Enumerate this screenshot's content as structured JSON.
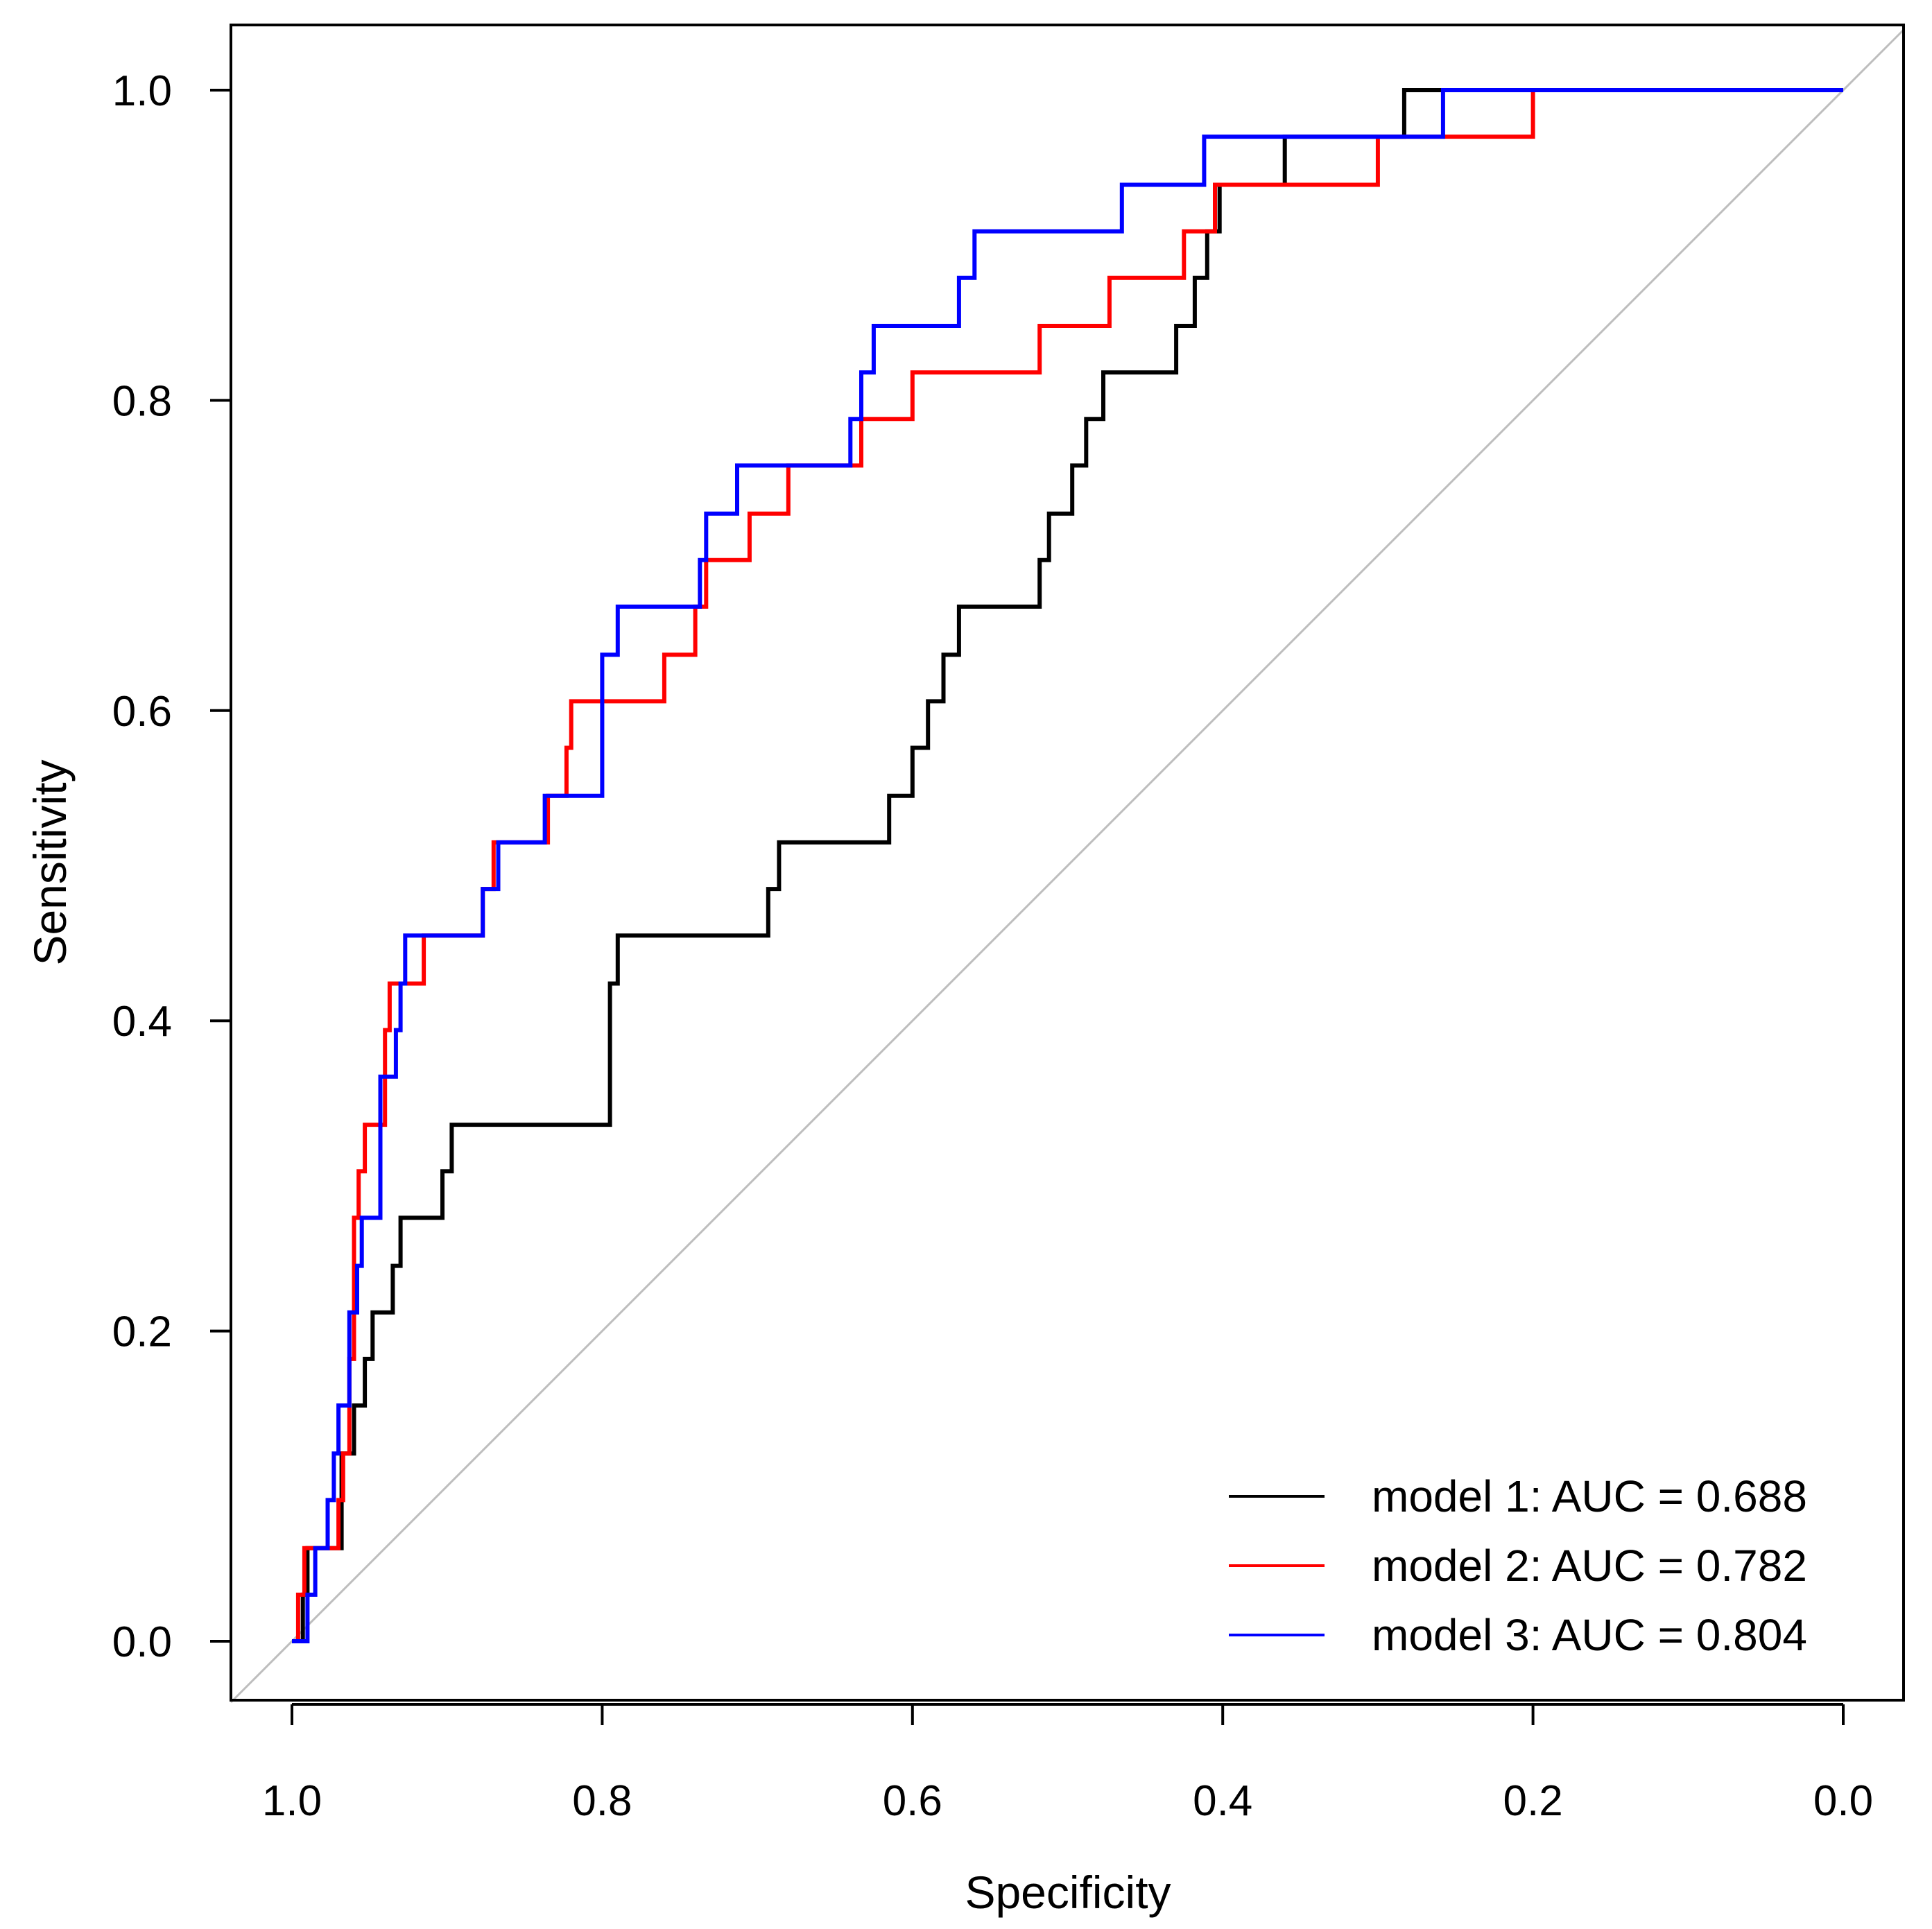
{
  "chart_data": {
    "type": "line",
    "title": "",
    "xlabel": "Specificity",
    "ylabel": "Sensitivity",
    "xlim": [
      1.0,
      0.0
    ],
    "ylim": [
      0.0,
      1.0
    ],
    "x_reversed": true,
    "xticks": [
      "1.0",
      "0.8",
      "0.6",
      "0.4",
      "0.2",
      "0.0"
    ],
    "yticks": [
      "0.0",
      "0.2",
      "0.4",
      "0.6",
      "0.8",
      "1.0"
    ],
    "grid": false,
    "legend_position": "bottom-right",
    "reference_line": {
      "from": [
        1.0,
        0.0
      ],
      "to": [
        0.0,
        1.0
      ],
      "color": "#bebebe"
    },
    "series": [
      {
        "name": "model 1",
        "legend": "model 1: AUC = 0.688",
        "auc": 0.688,
        "color": "#000000",
        "points": [
          [
            1.0,
            0.0
          ],
          [
            0.993,
            0.0
          ],
          [
            0.993,
            0.03
          ],
          [
            0.99,
            0.03
          ],
          [
            0.99,
            0.06
          ],
          [
            0.968,
            0.06
          ],
          [
            0.968,
            0.121
          ],
          [
            0.96,
            0.121
          ],
          [
            0.96,
            0.152
          ],
          [
            0.953,
            0.152
          ],
          [
            0.953,
            0.182
          ],
          [
            0.948,
            0.182
          ],
          [
            0.948,
            0.212
          ],
          [
            0.935,
            0.212
          ],
          [
            0.935,
            0.242
          ],
          [
            0.93,
            0.242
          ],
          [
            0.93,
            0.273
          ],
          [
            0.903,
            0.273
          ],
          [
            0.903,
            0.303
          ],
          [
            0.897,
            0.303
          ],
          [
            0.897,
            0.333
          ],
          [
            0.795,
            0.333
          ],
          [
            0.795,
            0.424
          ],
          [
            0.79,
            0.424
          ],
          [
            0.79,
            0.455
          ],
          [
            0.693,
            0.455
          ],
          [
            0.693,
            0.485
          ],
          [
            0.686,
            0.485
          ],
          [
            0.686,
            0.515
          ],
          [
            0.615,
            0.515
          ],
          [
            0.615,
            0.545
          ],
          [
            0.6,
            0.545
          ],
          [
            0.6,
            0.576
          ],
          [
            0.59,
            0.576
          ],
          [
            0.59,
            0.606
          ],
          [
            0.58,
            0.606
          ],
          [
            0.58,
            0.636
          ],
          [
            0.57,
            0.636
          ],
          [
            0.57,
            0.667
          ],
          [
            0.518,
            0.667
          ],
          [
            0.518,
            0.697
          ],
          [
            0.512,
            0.697
          ],
          [
            0.512,
            0.727
          ],
          [
            0.497,
            0.727
          ],
          [
            0.497,
            0.758
          ],
          [
            0.488,
            0.758
          ],
          [
            0.488,
            0.788
          ],
          [
            0.477,
            0.788
          ],
          [
            0.477,
            0.818
          ],
          [
            0.43,
            0.818
          ],
          [
            0.43,
            0.848
          ],
          [
            0.418,
            0.848
          ],
          [
            0.418,
            0.879
          ],
          [
            0.41,
            0.879
          ],
          [
            0.41,
            0.909
          ],
          [
            0.402,
            0.909
          ],
          [
            0.402,
            0.939
          ],
          [
            0.36,
            0.939
          ],
          [
            0.36,
            0.97
          ],
          [
            0.283,
            0.97
          ],
          [
            0.283,
            1.0
          ],
          [
            0.0,
            1.0
          ]
        ]
      },
      {
        "name": "model 2",
        "legend": "model 2: AUC = 0.782",
        "auc": 0.782,
        "color": "#ff0000",
        "points": [
          [
            1.0,
            0.0
          ],
          [
            0.996,
            0.0
          ],
          [
            0.996,
            0.03
          ],
          [
            0.992,
            0.03
          ],
          [
            0.992,
            0.06
          ],
          [
            0.97,
            0.06
          ],
          [
            0.97,
            0.091
          ],
          [
            0.967,
            0.091
          ],
          [
            0.967,
            0.121
          ],
          [
            0.963,
            0.121
          ],
          [
            0.963,
            0.182
          ],
          [
            0.96,
            0.182
          ],
          [
            0.96,
            0.273
          ],
          [
            0.957,
            0.273
          ],
          [
            0.957,
            0.303
          ],
          [
            0.953,
            0.303
          ],
          [
            0.953,
            0.333
          ],
          [
            0.94,
            0.333
          ],
          [
            0.94,
            0.394
          ],
          [
            0.937,
            0.394
          ],
          [
            0.937,
            0.424
          ],
          [
            0.915,
            0.424
          ],
          [
            0.915,
            0.455
          ],
          [
            0.877,
            0.455
          ],
          [
            0.877,
            0.485
          ],
          [
            0.87,
            0.485
          ],
          [
            0.87,
            0.515
          ],
          [
            0.835,
            0.515
          ],
          [
            0.835,
            0.545
          ],
          [
            0.823,
            0.545
          ],
          [
            0.823,
            0.576
          ],
          [
            0.82,
            0.576
          ],
          [
            0.82,
            0.606
          ],
          [
            0.76,
            0.606
          ],
          [
            0.76,
            0.636
          ],
          [
            0.74,
            0.636
          ],
          [
            0.74,
            0.667
          ],
          [
            0.733,
            0.667
          ],
          [
            0.733,
            0.697
          ],
          [
            0.705,
            0.697
          ],
          [
            0.705,
            0.727
          ],
          [
            0.68,
            0.727
          ],
          [
            0.68,
            0.758
          ],
          [
            0.633,
            0.758
          ],
          [
            0.633,
            0.788
          ],
          [
            0.6,
            0.788
          ],
          [
            0.6,
            0.818
          ],
          [
            0.518,
            0.818
          ],
          [
            0.518,
            0.848
          ],
          [
            0.473,
            0.848
          ],
          [
            0.473,
            0.879
          ],
          [
            0.425,
            0.879
          ],
          [
            0.425,
            0.909
          ],
          [
            0.405,
            0.909
          ],
          [
            0.405,
            0.939
          ],
          [
            0.3,
            0.939
          ],
          [
            0.3,
            0.97
          ],
          [
            0.2,
            0.97
          ],
          [
            0.2,
            1.0
          ],
          [
            0.0,
            1.0
          ]
        ]
      },
      {
        "name": "model 3",
        "legend": "model 3: AUC = 0.804",
        "auc": 0.804,
        "color": "#0000ff",
        "points": [
          [
            1.0,
            0.0
          ],
          [
            0.99,
            0.0
          ],
          [
            0.99,
            0.03
          ],
          [
            0.985,
            0.03
          ],
          [
            0.985,
            0.06
          ],
          [
            0.977,
            0.06
          ],
          [
            0.977,
            0.091
          ],
          [
            0.973,
            0.091
          ],
          [
            0.973,
            0.121
          ],
          [
            0.97,
            0.121
          ],
          [
            0.97,
            0.152
          ],
          [
            0.963,
            0.152
          ],
          [
            0.963,
            0.212
          ],
          [
            0.958,
            0.212
          ],
          [
            0.958,
            0.242
          ],
          [
            0.955,
            0.242
          ],
          [
            0.955,
            0.273
          ],
          [
            0.943,
            0.273
          ],
          [
            0.943,
            0.364
          ],
          [
            0.933,
            0.364
          ],
          [
            0.933,
            0.394
          ],
          [
            0.93,
            0.394
          ],
          [
            0.93,
            0.424
          ],
          [
            0.927,
            0.424
          ],
          [
            0.927,
            0.455
          ],
          [
            0.877,
            0.455
          ],
          [
            0.877,
            0.485
          ],
          [
            0.867,
            0.485
          ],
          [
            0.867,
            0.515
          ],
          [
            0.837,
            0.515
          ],
          [
            0.837,
            0.545
          ],
          [
            0.8,
            0.545
          ],
          [
            0.8,
            0.636
          ],
          [
            0.79,
            0.636
          ],
          [
            0.79,
            0.667
          ],
          [
            0.737,
            0.667
          ],
          [
            0.737,
            0.697
          ],
          [
            0.733,
            0.697
          ],
          [
            0.733,
            0.727
          ],
          [
            0.713,
            0.727
          ],
          [
            0.713,
            0.758
          ],
          [
            0.64,
            0.758
          ],
          [
            0.64,
            0.788
          ],
          [
            0.633,
            0.788
          ],
          [
            0.633,
            0.818
          ],
          [
            0.625,
            0.818
          ],
          [
            0.625,
            0.848
          ],
          [
            0.57,
            0.848
          ],
          [
            0.57,
            0.879
          ],
          [
            0.56,
            0.879
          ],
          [
            0.56,
            0.909
          ],
          [
            0.465,
            0.909
          ],
          [
            0.465,
            0.939
          ],
          [
            0.412,
            0.939
          ],
          [
            0.412,
            0.97
          ],
          [
            0.258,
            0.97
          ],
          [
            0.258,
            1.0
          ],
          [
            0.0,
            1.0
          ]
        ]
      }
    ]
  }
}
